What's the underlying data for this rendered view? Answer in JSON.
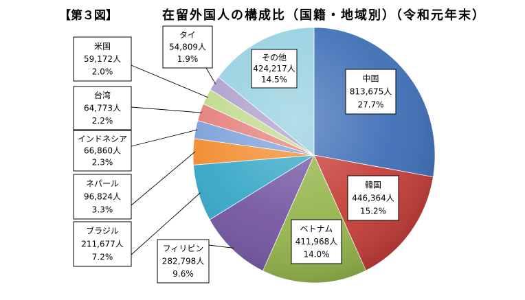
{
  "chart_data": {
    "type": "pie",
    "figure_label": "【第３図】",
    "title": "在留外国人の構成比（国籍・地域別）（令和元年末）",
    "slices": [
      {
        "label": "中国",
        "count": "813,675人",
        "percent": "27.7%",
        "value": 27.7,
        "color": "#3c6db5"
      },
      {
        "label": "韓国",
        "count": "446,364人",
        "percent": "15.2%",
        "value": 15.2,
        "color": "#c43c36"
      },
      {
        "label": "ベトナム",
        "count": "411,968人",
        "percent": "14.0%",
        "value": 14.0,
        "color": "#93b449"
      },
      {
        "label": "フィリピン",
        "count": "282,798人",
        "percent": "9.6%",
        "value": 9.6,
        "color": "#7354a1"
      },
      {
        "label": "ブラジル",
        "count": "211,677人",
        "percent": "7.2%",
        "value": 7.2,
        "color": "#33a6c6"
      },
      {
        "label": "ネパール",
        "count": "96,824人",
        "percent": "3.3%",
        "value": 3.3,
        "color": "#f28a2c"
      },
      {
        "label": "インドネシア",
        "count": "66,860人",
        "percent": "2.3%",
        "value": 2.3,
        "color": "#7a9fda"
      },
      {
        "label": "台湾",
        "count": "64,773人",
        "percent": "2.2%",
        "value": 2.2,
        "color": "#e47d78"
      },
      {
        "label": "米国",
        "count": "59,172人",
        "percent": "2.0%",
        "value": 2.0,
        "color": "#bfd98a"
      },
      {
        "label": "タイ",
        "count": "54,809人",
        "percent": "1.9%",
        "value": 1.9,
        "color": "#ad9ccc"
      },
      {
        "label": "その他",
        "count": "424,217人",
        "percent": "14.5%",
        "value": 14.5,
        "color": "#93cfe0"
      }
    ]
  }
}
